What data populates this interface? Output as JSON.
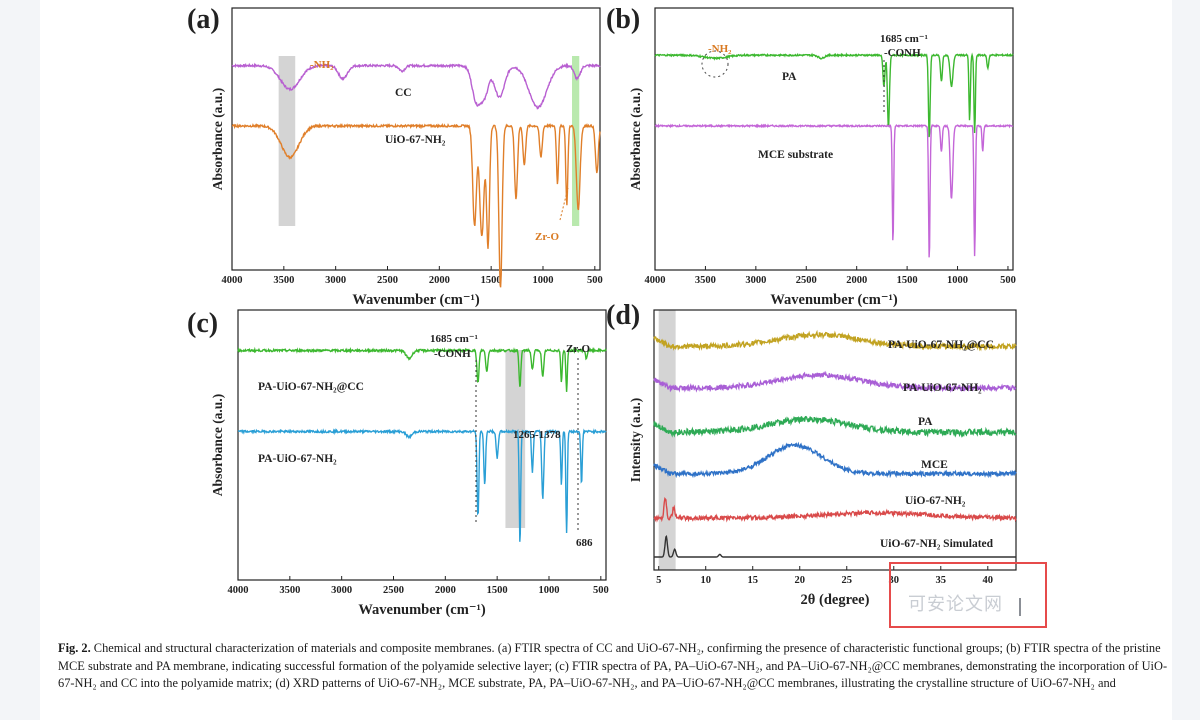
{
  "chart_data": [
    {
      "type": "line",
      "panel": "(a)",
      "xlabel": "Wavenumber (cm⁻¹)",
      "ylabel": "Absorbance (a.u.)",
      "xlim": [
        4000,
        450
      ],
      "x_reversed": true,
      "xticks": [
        4000,
        3500,
        3000,
        2500,
        2000,
        1500,
        1000,
        500
      ],
      "series": [
        {
          "name": "CC",
          "color": "#b85fd1",
          "baseline": 0.78,
          "noise": 0.004,
          "peaks": [
            [
              3440,
              0.09,
              130
            ],
            [
              2930,
              0.05,
              60
            ],
            [
              2360,
              0.02,
              40
            ],
            [
              1640,
              0.14,
              60
            ],
            [
              1560,
              0.1,
              50
            ],
            [
              1420,
              0.12,
              70
            ],
            [
              1050,
              0.16,
              120
            ],
            [
              670,
              0.05,
              40
            ]
          ]
        },
        {
          "name": "UiO-67-NH₂",
          "color": "#e07f2a",
          "baseline": 0.55,
          "noise": 0.004,
          "peaks": [
            [
              3440,
              0.12,
              120
            ],
            [
              1660,
              0.38,
              25
            ],
            [
              1590,
              0.42,
              30
            ],
            [
              1530,
              0.46,
              20
            ],
            [
              1410,
              0.62,
              22
            ],
            [
              1260,
              0.28,
              20
            ],
            [
              1180,
              0.15,
              18
            ],
            [
              1020,
              0.12,
              18
            ],
            [
              860,
              0.22,
              14
            ],
            [
              770,
              0.3,
              14
            ],
            [
              660,
              0.32,
              25
            ],
            [
              480,
              0.18,
              20
            ]
          ]
        }
      ],
      "bands": [
        {
          "name": "-NH₂",
          "x": [
            3550,
            3390
          ],
          "color": "#c9c9c9"
        },
        {
          "name": "Zr-O",
          "x": [
            720,
            650
          ],
          "color": "#a8e39a"
        }
      ],
      "annotations": [
        "-NH₂",
        "Zr-O"
      ]
    },
    {
      "type": "line",
      "panel": "(b)",
      "xlabel": "Wavenumber (cm⁻¹)",
      "ylabel": "Absorbance (a.u.)",
      "xlim": [
        4000,
        450
      ],
      "x_reversed": true,
      "xticks": [
        4000,
        3500,
        3000,
        2500,
        2000,
        1500,
        1000,
        500
      ],
      "series": [
        {
          "name": "PA",
          "color": "#3cb82f",
          "baseline": 0.82,
          "noise": 0.003,
          "peaks": [
            [
              3400,
              0.012,
              150
            ],
            [
              2350,
              0.012,
              40
            ],
            [
              1685,
              0.28,
              14
            ],
            [
              1730,
              0.12,
              14
            ],
            [
              1280,
              0.32,
              12
            ],
            [
              1160,
              0.1,
              14
            ],
            [
              1060,
              0.12,
              20
            ],
            [
              880,
              0.25,
              10
            ],
            [
              830,
              0.3,
              10
            ],
            [
              700,
              0.05,
              12
            ]
          ]
        },
        {
          "name": "MCE substrate",
          "color": "#c466d8",
          "baseline": 0.55,
          "noise": 0.003,
          "peaks": [
            [
              1640,
              0.45,
              10
            ],
            [
              1280,
              0.52,
              10
            ],
            [
              1060,
              0.28,
              18
            ],
            [
              830,
              0.5,
              10
            ],
            [
              750,
              0.1,
              10
            ],
            [
              1160,
              0.1,
              12
            ]
          ]
        }
      ],
      "annotations": [
        "-NH₂",
        "1685 cm⁻¹",
        "-CONH"
      ]
    },
    {
      "type": "line",
      "panel": "(c)",
      "xlabel": "Wavenumber (cm⁻¹)",
      "ylabel": "Absorbance (a.u.)",
      "xlim": [
        4000,
        450
      ],
      "x_reversed": true,
      "xticks": [
        4000,
        3500,
        3000,
        2500,
        2000,
        1500,
        1000,
        500
      ],
      "series": [
        {
          "name": "PA-UiO-67-NH₂@CC",
          "color": "#3cb82f",
          "baseline": 0.85,
          "noise": 0.004,
          "peaks": [
            [
              2350,
              0.03,
              40
            ],
            [
              1685,
              0.12,
              14
            ],
            [
              1600,
              0.08,
              14
            ],
            [
              1280,
              0.14,
              12
            ],
            [
              1160,
              0.07,
              14
            ],
            [
              1060,
              0.1,
              14
            ],
            [
              880,
              0.12,
              10
            ],
            [
              830,
              0.15,
              10
            ],
            [
              640,
              0.03,
              12
            ]
          ]
        },
        {
          "name": "PA-UiO-67-NH₂",
          "color": "#2a9fd6",
          "baseline": 0.55,
          "noise": 0.004,
          "peaks": [
            [
              2350,
              0.02,
              40
            ],
            [
              1685,
              0.32,
              12
            ],
            [
              1620,
              0.2,
              12
            ],
            [
              1500,
              0.1,
              14
            ],
            [
              1280,
              0.42,
              10
            ],
            [
              1160,
              0.15,
              12
            ],
            [
              1060,
              0.25,
              14
            ],
            [
              880,
              0.2,
              10
            ],
            [
              830,
              0.38,
              10
            ],
            [
              686,
              0.2,
              10
            ]
          ]
        }
      ],
      "bands": [
        {
          "name": "1265-1378",
          "x": [
            1420,
            1230
          ],
          "color": "#c9c9c9"
        }
      ],
      "annotations": [
        "1685 cm⁻¹",
        "-CONH",
        "Zr-O",
        "1265-1378",
        "686"
      ]
    },
    {
      "type": "line",
      "panel": "(d)",
      "xlabel": "2θ (degree)",
      "ylabel": "Intensity (a.u.)",
      "xlim": [
        4.5,
        43
      ],
      "x_reversed": false,
      "xticks": [
        5,
        10,
        15,
        20,
        25,
        30,
        35,
        40
      ],
      "series": [
        {
          "name": "PA-UiO-67-NH₂@CC",
          "color": "#c2a322",
          "baseline": 0.86,
          "noise": 0.01,
          "hump": [
            22,
            0.045,
            6
          ]
        },
        {
          "name": "PA-UiO-67-NH₂",
          "color": "#a95fd6",
          "baseline": 0.7,
          "noise": 0.01,
          "hump": [
            22,
            0.05,
            6
          ]
        },
        {
          "name": "PA",
          "color": "#2eaa55",
          "baseline": 0.53,
          "noise": 0.012,
          "hump": [
            21,
            0.05,
            6
          ]
        },
        {
          "name": "MCE",
          "color": "#2f72c7",
          "baseline": 0.37,
          "noise": 0.008,
          "hump": [
            19.5,
            0.11,
            4
          ]
        },
        {
          "name": "UiO-67-NH₂",
          "color": "#d94a4a",
          "baseline": 0.2,
          "noise": 0.008,
          "hump": [
            28,
            0.02,
            8
          ],
          "sharp": [
            [
              5.7,
              0.08
            ],
            [
              6.6,
              0.04
            ]
          ]
        },
        {
          "name": "UiO-67-NH₂ Simulated",
          "color": "#333333",
          "baseline": 0.05,
          "noise": 0.0,
          "sharp": [
            [
              5.8,
              0.08
            ],
            [
              6.7,
              0.03
            ],
            [
              11.5,
              0.01
            ]
          ]
        }
      ],
      "bands": [
        {
          "name": "",
          "x": [
            5,
            6.8
          ],
          "color": "#c9c9c9"
        }
      ]
    }
  ],
  "caption": {
    "label": "Fig. 2.",
    "text": " Chemical and structural characterization of materials and composite membranes. (a) FTIR spectra of CC and UiO-67-NH₂, confirming the presence of characteristic functional groups; (b) FTIR spectra of the pristine MCE substrate and PA membrane, indicating successful formation of the polyamide selective layer; (c) FTIR spectra of PA, PA–UiO-67-NH₂, and PA–UiO-67-NH₂@CC membranes, demonstrating the incorporation of UiO-67-NH₂ and CC into the polyamide matrix; (d) XRD patterns of UiO-67-NH₂, MCE substrate, PA, PA–UiO-67-NH₂, and PA–UiO-67-NH₂@CC membranes, illustrating the crystalline structure of UiO-67-NH₂ and"
  },
  "overlay": {
    "watermark": "可安论文网",
    "highlight_color": "#e64b4b"
  }
}
